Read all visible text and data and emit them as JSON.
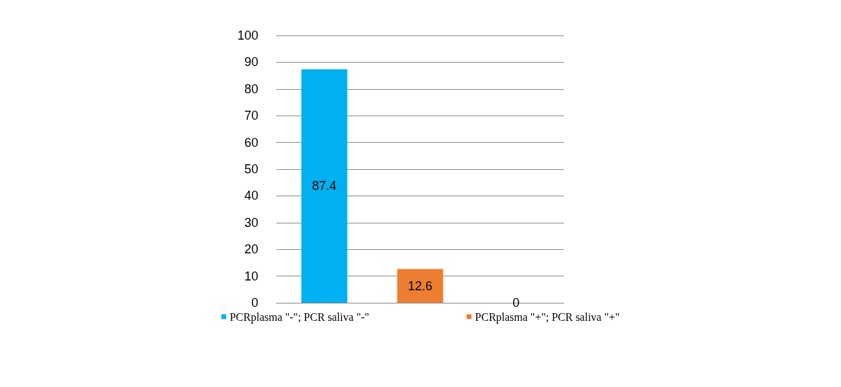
{
  "chart_data": {
    "type": "bar",
    "categories": [
      null,
      null,
      null
    ],
    "stacked": true,
    "series": [
      {
        "name": "PCRplasma \"-\"; PCR saliva \"-\"",
        "color": "#00b0f0",
        "values": [
          87.4,
          null,
          null
        ]
      },
      {
        "name": "PCRplasma \"+\"; PCR saliva \"+\"",
        "color": "#ed7d31",
        "values": [
          null,
          12.6,
          null
        ]
      },
      {
        "color": "#a5a5a5",
        "values": [
          null,
          null,
          0
        ]
      }
    ],
    "ylim": [
      0,
      100
    ],
    "yticks": [
      0,
      10,
      20,
      30,
      40,
      50,
      60,
      70,
      80,
      90,
      100
    ],
    "grid": "y",
    "legend": "bottom",
    "data_labels": true
  }
}
